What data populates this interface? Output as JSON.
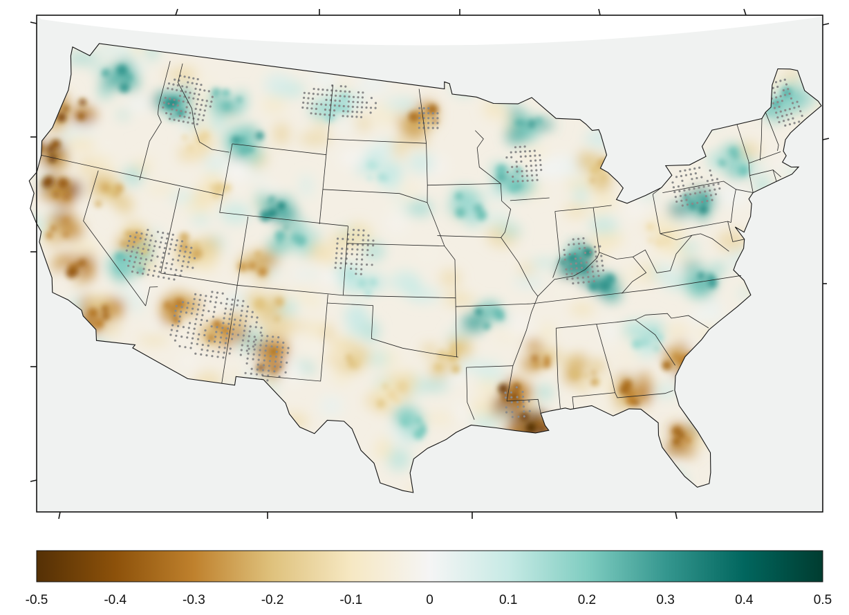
{
  "map": {
    "type": "choropleth-contour",
    "region": "contiguous-united-states",
    "background_color": "#f0f2f1",
    "state_border_color": "#111111",
    "stippling": {
      "meaning": "significant",
      "color": "#8a8a8a"
    },
    "patches": [
      {
        "lon": -123.3,
        "lat": 44.8,
        "value": -0.35
      },
      {
        "lon": -123.8,
        "lat": 42.3,
        "value": -0.4
      },
      {
        "lon": -122.2,
        "lat": 40.3,
        "value": -0.38
      },
      {
        "lon": -121.3,
        "lat": 38.2,
        "value": -0.3
      },
      {
        "lon": -119.7,
        "lat": 36.3,
        "value": -0.33
      },
      {
        "lon": -117.4,
        "lat": 33.9,
        "value": -0.3
      },
      {
        "lon": -118.6,
        "lat": 40.8,
        "value": -0.2
      },
      {
        "lon": -116.5,
        "lat": 38.3,
        "value": -0.22
      },
      {
        "lon": -112.6,
        "lat": 35.0,
        "value": -0.32
      },
      {
        "lon": -109.5,
        "lat": 34.2,
        "value": -0.3
      },
      {
        "lon": -106.2,
        "lat": 33.0,
        "value": -0.35
      },
      {
        "lon": -106.6,
        "lat": 35.8,
        "value": -0.2
      },
      {
        "lon": -108.0,
        "lat": 38.4,
        "value": -0.25
      },
      {
        "lon": -112.2,
        "lat": 38.8,
        "value": -0.2
      },
      {
        "lon": -111.5,
        "lat": 42.3,
        "value": -0.15
      },
      {
        "lon": -113.5,
        "lat": 44.6,
        "value": -0.15
      },
      {
        "lon": -101.5,
        "lat": 33.5,
        "value": -0.18
      },
      {
        "lon": -98.5,
        "lat": 31.5,
        "value": -0.15
      },
      {
        "lon": -95.3,
        "lat": 33.5,
        "value": -0.18
      },
      {
        "lon": -96.8,
        "lat": 47.3,
        "value": -0.3
      },
      {
        "lon": -91.3,
        "lat": 31.2,
        "value": -0.38
      },
      {
        "lon": -90.2,
        "lat": 29.6,
        "value": -0.45
      },
      {
        "lon": -89.4,
        "lat": 33.4,
        "value": -0.28
      },
      {
        "lon": -86.8,
        "lat": 32.3,
        "value": -0.22
      },
      {
        "lon": -83.8,
        "lat": 30.8,
        "value": -0.3
      },
      {
        "lon": -81.6,
        "lat": 27.8,
        "value": -0.33
      },
      {
        "lon": -80.8,
        "lat": 32.3,
        "value": -0.3
      },
      {
        "lon": -84.4,
        "lat": 43.8,
        "value": -0.2
      },
      {
        "lon": -80.4,
        "lat": 39.5,
        "value": -0.12
      },
      {
        "lon": -120.5,
        "lat": 47.3,
        "value": 0.25
      },
      {
        "lon": -115.5,
        "lat": 46.5,
        "value": 0.3
      },
      {
        "lon": -112.0,
        "lat": 47.3,
        "value": 0.22
      },
      {
        "lon": -110.0,
        "lat": 45.2,
        "value": 0.25
      },
      {
        "lon": -107.3,
        "lat": 41.8,
        "value": 0.28
      },
      {
        "lon": -105.8,
        "lat": 40.2,
        "value": 0.22
      },
      {
        "lon": -116.3,
        "lat": 37.2,
        "value": 0.2
      },
      {
        "lon": -103.5,
        "lat": 47.8,
        "value": 0.15
      },
      {
        "lon": -100.0,
        "lat": 44.3,
        "value": 0.12
      },
      {
        "lon": -101.0,
        "lat": 37.8,
        "value": 0.12
      },
      {
        "lon": -93.5,
        "lat": 42.3,
        "value": 0.2
      },
      {
        "lon": -90.5,
        "lat": 43.8,
        "value": 0.22
      },
      {
        "lon": -88.7,
        "lat": 46.8,
        "value": 0.25
      },
      {
        "lon": -86.5,
        "lat": 38.8,
        "value": 0.32
      },
      {
        "lon": -84.8,
        "lat": 37.0,
        "value": 0.3
      },
      {
        "lon": -77.8,
        "lat": 41.3,
        "value": 0.3
      },
      {
        "lon": -74.5,
        "lat": 43.0,
        "value": 0.22
      },
      {
        "lon": -78.2,
        "lat": 36.8,
        "value": 0.25
      },
      {
        "lon": -69.8,
        "lat": 45.6,
        "value": 0.22
      },
      {
        "lon": -92.5,
        "lat": 35.8,
        "value": 0.25
      },
      {
        "lon": -97.5,
        "lat": 29.8,
        "value": 0.2
      },
      {
        "lon": -82.5,
        "lat": 33.8,
        "value": 0.15
      }
    ],
    "significant_regions": [
      {
        "lon": -114.5,
        "lat": 38.0,
        "rx": 2.5,
        "ry": 1.5
      },
      {
        "lon": -110.0,
        "lat": 34.5,
        "rx": 3.0,
        "ry": 2.0
      },
      {
        "lon": -106.5,
        "lat": 33.0,
        "rx": 1.5,
        "ry": 1.5
      },
      {
        "lon": -103.5,
        "lat": 48.0,
        "rx": 3.0,
        "ry": 1.0
      },
      {
        "lon": -101.5,
        "lat": 39.5,
        "rx": 1.5,
        "ry": 1.5
      },
      {
        "lon": -86.0,
        "lat": 38.7,
        "rx": 1.5,
        "ry": 1.5
      },
      {
        "lon": -89.5,
        "lat": 44.5,
        "rx": 1.5,
        "ry": 1.2
      },
      {
        "lon": -77.5,
        "lat": 42.0,
        "rx": 1.8,
        "ry": 1.2
      },
      {
        "lon": -69.5,
        "lat": 45.5,
        "rx": 1.2,
        "ry": 1.5
      },
      {
        "lon": -115.0,
        "lat": 47.0,
        "rx": 2.0,
        "ry": 1.5
      },
      {
        "lon": -91.0,
        "lat": 30.8,
        "rx": 1.0,
        "ry": 1.0
      },
      {
        "lon": -96.5,
        "lat": 47.3,
        "rx": 1.0,
        "ry": 0.8
      }
    ]
  },
  "colorbar": {
    "min": -0.5,
    "max": 0.5,
    "stops": [
      {
        "value": -0.5,
        "color": "#543005"
      },
      {
        "value": -0.4,
        "color": "#8c510a"
      },
      {
        "value": -0.3,
        "color": "#bf812d"
      },
      {
        "value": -0.2,
        "color": "#dfc27d"
      },
      {
        "value": -0.1,
        "color": "#f6e8c3"
      },
      {
        "value": 0,
        "color": "#f5f5f5"
      },
      {
        "value": 0.1,
        "color": "#c7eae5"
      },
      {
        "value": 0.2,
        "color": "#80cdc1"
      },
      {
        "value": 0.3,
        "color": "#35978f"
      },
      {
        "value": 0.4,
        "color": "#01665e"
      },
      {
        "value": 0.5,
        "color": "#003c30"
      }
    ],
    "tick_labels": [
      "-0.5",
      "-0.4",
      "-0.3",
      "-0.2",
      "-0.1",
      "0",
      "0.1",
      "0.2",
      "0.3",
      "0.4",
      "0.5"
    ]
  }
}
